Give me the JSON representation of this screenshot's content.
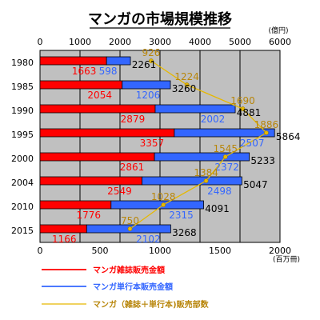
{
  "chart_data": {
    "type": "bar",
    "title": "マンガの市場規模推移",
    "categories": [
      "1980",
      "1985",
      "1990",
      "1995",
      "2000",
      "2004",
      "2010",
      "2015"
    ],
    "series": [
      {
        "name": "マンガ雑誌販売金額",
        "color": "#ff0000",
        "axis": "top",
        "values": [
          1663,
          2054,
          2879,
          3357,
          2861,
          2549,
          1776,
          1166
        ]
      },
      {
        "name": "マンガ単行本販売金額",
        "color": "#3366ff",
        "axis": "top",
        "values": [
          598,
          1206,
          2002,
          2507,
          2372,
          2498,
          2315,
          2102
        ]
      },
      {
        "name": "マンガ（雑誌＋単行本)販売部数",
        "color": "#e6b800",
        "label_color": "#b8860b",
        "axis": "bottom",
        "type": "line",
        "values": [
          926,
          1224,
          1690,
          1886,
          1545,
          1384,
          1028,
          750
        ]
      }
    ],
    "totals": [
      2261,
      3260,
      4881,
      5864,
      5233,
      5047,
      4091,
      3268
    ],
    "top_axis": {
      "unit": "(億円)",
      "ticks": [
        "0",
        "1000",
        "2000",
        "3000",
        "4000",
        "5000",
        "6000"
      ],
      "range": [
        0,
        6000
      ]
    },
    "bottom_axis": {
      "unit": "(百万冊)",
      "ticks": [
        "0",
        "500",
        "1000",
        "1500",
        "2000"
      ],
      "range": [
        0,
        2000
      ]
    },
    "grid": true,
    "legend_position": "bottom"
  },
  "colors": {
    "plot_bg": "#c0c0c0",
    "grid": "#000000",
    "magazine": "#ff0000",
    "book": "#3366ff",
    "line": "#e6b800",
    "line_label": "#b8860b",
    "total_label": "#000000"
  }
}
